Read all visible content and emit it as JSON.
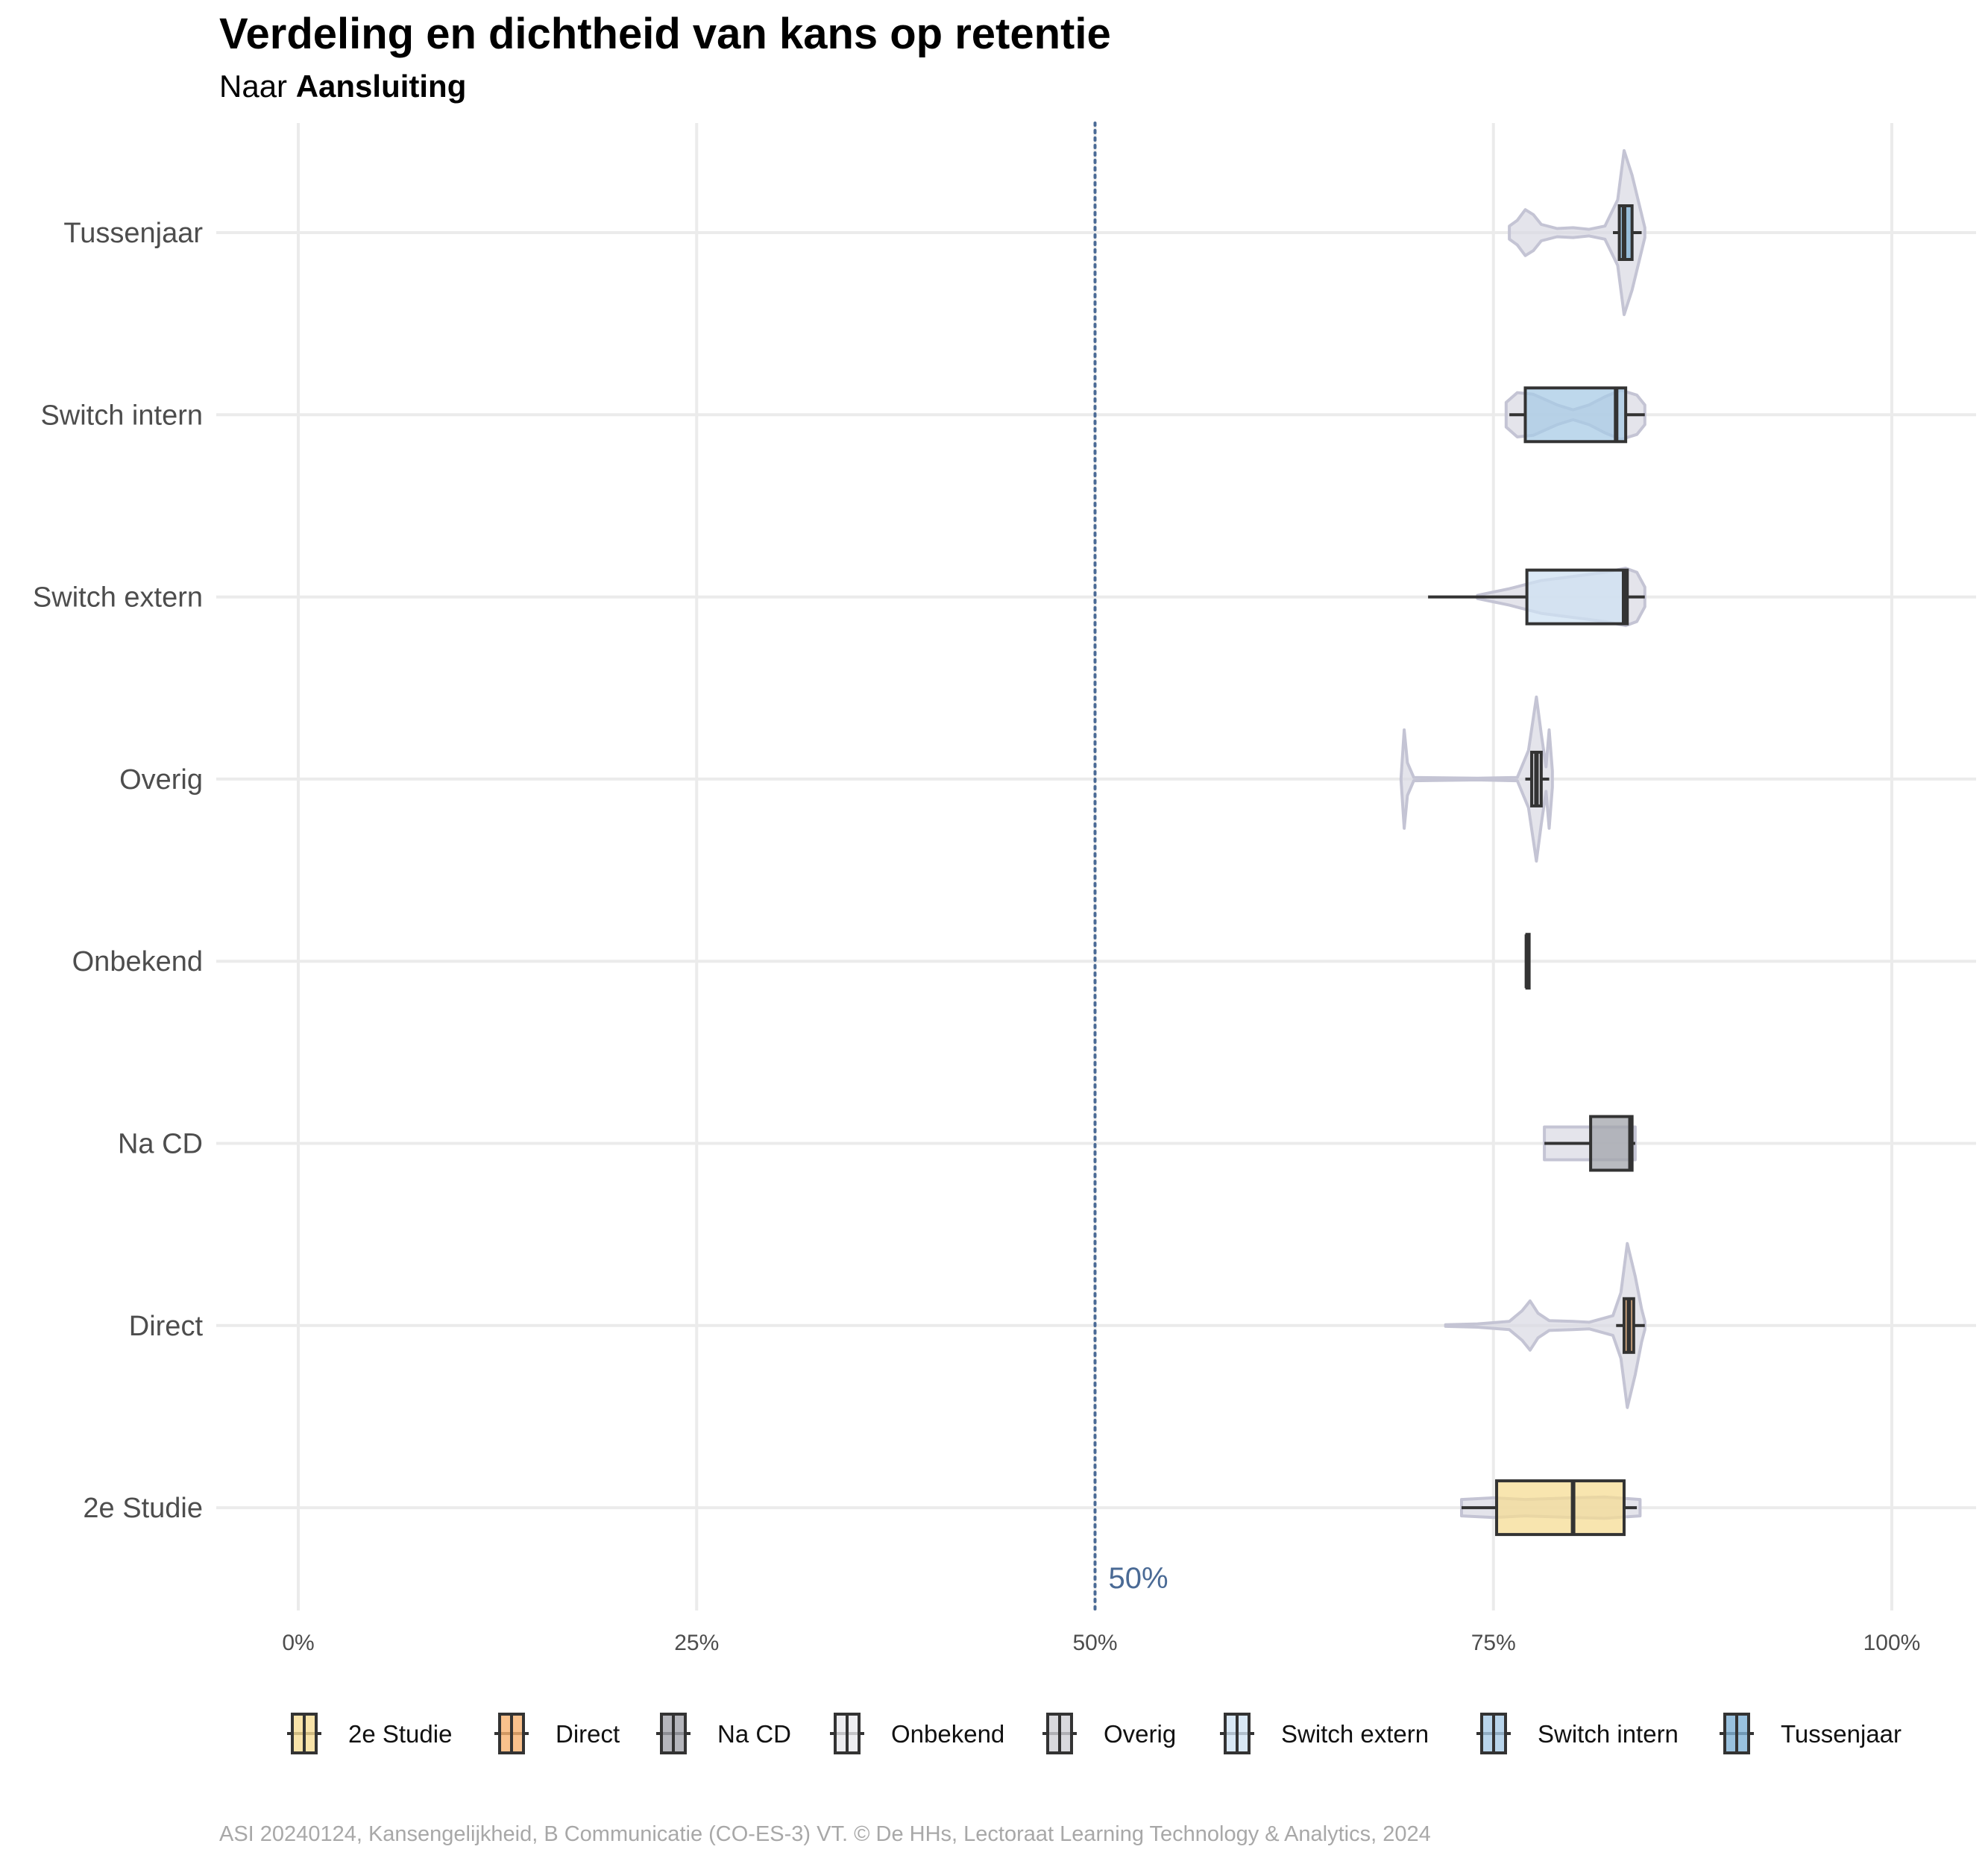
{
  "title": "Verdeling en dichtheid van kans op retentie",
  "subtitle_prefix": "Naar ",
  "subtitle_bold": "Aansluiting",
  "caption": "ASI 20240124, Kansengelijkheid, B Communicatie (CO-ES-3) VT. © De HHs, Lectoraat Learning Technology & Analytics, 2024",
  "colors": {
    "grid": "#ebebeb",
    "violin_fill": "#d9d9e2",
    "violin_stroke": "#c4c4d4",
    "box_stroke": "#333333",
    "reference_line": "#4a6a95"
  },
  "chart_data": {
    "type": "boxplot+violin",
    "orientation": "horizontal",
    "xlim": [
      0,
      1
    ],
    "x_ticks": [
      0,
      0.25,
      0.5,
      0.75,
      1
    ],
    "x_tick_labels": [
      "0%",
      "25%",
      "50%",
      "75%",
      "100%"
    ],
    "grid": true,
    "legend_position": "bottom",
    "reference_line": {
      "x": 0.5,
      "label": "50%",
      "style": "dotted"
    },
    "categories": [
      "Tussenjaar",
      "Switch intern",
      "Switch extern",
      "Overig",
      "Onbekend",
      "Na CD",
      "Direct",
      "2e Studie"
    ],
    "series": [
      {
        "name": "Tussenjaar",
        "color": "#7fb2d6",
        "box": {
          "whisker_low": 0.825,
          "q1": 0.829,
          "median": 0.832,
          "q3": 0.837,
          "whisker_high": 0.843
        },
        "violin": {
          "min": 0.76,
          "max": 0.845,
          "profile": [
            [
              0.76,
              0.08
            ],
            [
              0.765,
              0.15
            ],
            [
              0.77,
              0.28
            ],
            [
              0.775,
              0.22
            ],
            [
              0.78,
              0.1
            ],
            [
              0.79,
              0.05
            ],
            [
              0.8,
              0.06
            ],
            [
              0.81,
              0.04
            ],
            [
              0.82,
              0.08
            ],
            [
              0.828,
              0.4
            ],
            [
              0.832,
              1.0
            ],
            [
              0.837,
              0.7
            ],
            [
              0.842,
              0.3
            ],
            [
              0.845,
              0.06
            ]
          ]
        }
      },
      {
        "name": "Switch intern",
        "color": "#a8cbe6",
        "box": {
          "whisker_low": 0.76,
          "q1": 0.77,
          "median": 0.827,
          "q3": 0.833,
          "whisker_high": 0.845
        },
        "violin": {
          "min": 0.758,
          "max": 0.845,
          "profile": [
            [
              0.758,
              0.15
            ],
            [
              0.765,
              0.27
            ],
            [
              0.775,
              0.25
            ],
            [
              0.79,
              0.12
            ],
            [
              0.8,
              0.06
            ],
            [
              0.81,
              0.12
            ],
            [
              0.82,
              0.22
            ],
            [
              0.83,
              0.3
            ],
            [
              0.84,
              0.24
            ],
            [
              0.845,
              0.12
            ]
          ]
        }
      },
      {
        "name": "Switch extern",
        "color": "#cfe2f3",
        "box": {
          "whisker_low": 0.709,
          "q1": 0.771,
          "median": 0.832,
          "q3": 0.834,
          "whisker_high": 0.845
        },
        "violin": {
          "min": 0.74,
          "max": 0.845,
          "profile": [
            [
              0.74,
              0.02
            ],
            [
              0.76,
              0.1
            ],
            [
              0.78,
              0.2
            ],
            [
              0.8,
              0.25
            ],
            [
              0.82,
              0.3
            ],
            [
              0.833,
              0.35
            ],
            [
              0.84,
              0.3
            ],
            [
              0.845,
              0.12
            ]
          ]
        }
      },
      {
        "name": "Overig",
        "color": "#d0d0d4",
        "box": {
          "whisker_low": 0.77,
          "q1": 0.774,
          "median": 0.777,
          "q3": 0.78,
          "whisker_high": 0.785
        },
        "violin": {
          "min": 0.692,
          "max": 0.787,
          "profile": [
            [
              0.692,
              0.0
            ],
            [
              0.694,
              0.6
            ],
            [
              0.696,
              0.2
            ],
            [
              0.7,
              0.02
            ],
            [
              0.74,
              0.01
            ],
            [
              0.765,
              0.02
            ],
            [
              0.772,
              0.35
            ],
            [
              0.777,
              1.0
            ],
            [
              0.78,
              0.55
            ],
            [
              0.783,
              0.15
            ],
            [
              0.785,
              0.6
            ],
            [
              0.787,
              0.1
            ]
          ]
        }
      },
      {
        "name": "Onbekend",
        "color": "#e8e8ec",
        "box": {
          "whisker_low": 0.771,
          "q1": 0.771,
          "median": 0.771,
          "q3": 0.771,
          "whisker_high": 0.771
        },
        "violin": null
      },
      {
        "name": "Na CD",
        "color": "#a2a4ab",
        "box": {
          "whisker_low": 0.782,
          "q1": 0.811,
          "median": 0.836,
          "q3": 0.837,
          "whisker_high": 0.839
        },
        "violin": {
          "min": 0.782,
          "max": 0.839,
          "profile": [
            [
              0.782,
              0.2
            ],
            [
              0.8,
              0.2
            ],
            [
              0.82,
              0.2
            ],
            [
              0.839,
              0.2
            ]
          ]
        }
      },
      {
        "name": "Direct",
        "color": "#f7b26f",
        "box": {
          "whisker_low": 0.827,
          "q1": 0.832,
          "median": 0.835,
          "q3": 0.838,
          "whisker_high": 0.845
        },
        "violin": {
          "min": 0.72,
          "max": 0.845,
          "profile": [
            [
              0.72,
              0.01
            ],
            [
              0.74,
              0.02
            ],
            [
              0.76,
              0.05
            ],
            [
              0.768,
              0.18
            ],
            [
              0.773,
              0.3
            ],
            [
              0.778,
              0.15
            ],
            [
              0.785,
              0.06
            ],
            [
              0.8,
              0.05
            ],
            [
              0.81,
              0.04
            ],
            [
              0.825,
              0.12
            ],
            [
              0.83,
              0.4
            ],
            [
              0.834,
              1.0
            ],
            [
              0.839,
              0.6
            ],
            [
              0.843,
              0.2
            ],
            [
              0.845,
              0.05
            ]
          ]
        }
      },
      {
        "name": "2e Studie",
        "color": "#f6dc94",
        "box": {
          "whisker_low": 0.73,
          "q1": 0.752,
          "median": 0.8,
          "q3": 0.832,
          "whisker_high": 0.84
        },
        "violin": {
          "min": 0.73,
          "max": 0.842,
          "profile": [
            [
              0.73,
              0.1
            ],
            [
              0.75,
              0.12
            ],
            [
              0.77,
              0.1
            ],
            [
              0.8,
              0.12
            ],
            [
              0.82,
              0.13
            ],
            [
              0.842,
              0.1
            ]
          ]
        }
      }
    ],
    "legend": [
      "2e Studie",
      "Direct",
      "Na CD",
      "Onbekend",
      "Overig",
      "Switch extern",
      "Switch intern",
      "Tussenjaar"
    ]
  }
}
